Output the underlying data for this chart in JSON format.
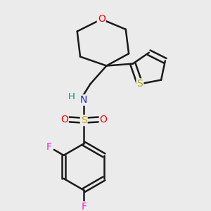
{
  "background_color": "#ebebeb",
  "bond_color": "#1a1a1a",
  "bond_width": 1.8,
  "atom_colors": {
    "O": "#ff0000",
    "N": "#2222dd",
    "S_sulfonyl": "#ccaa00",
    "S_thiophene": "#aaaa00",
    "F": "#ee22cc",
    "H": "#008888",
    "C": "#1a1a1a"
  },
  "figsize": [
    3.0,
    3.0
  ],
  "dpi": 100
}
